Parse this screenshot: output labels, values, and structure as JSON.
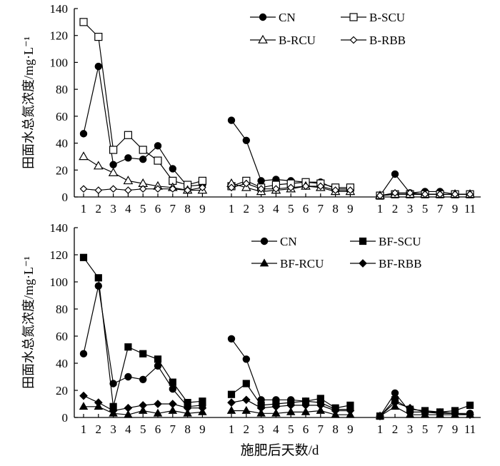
{
  "chart_data": [
    {
      "type": "line",
      "ylabel": "田面水总氮浓度/mg·L⁻¹",
      "xlabel": "",
      "ylim": [
        0,
        140
      ],
      "yticks": [
        0,
        20,
        40,
        60,
        80,
        100,
        120,
        140
      ],
      "grid": false,
      "legend_position": "top-right",
      "periods": [
        {
          "days": [
            "1",
            "2",
            "3",
            "4",
            "5",
            "6",
            "7",
            "8",
            "9"
          ]
        },
        {
          "days": [
            "1",
            "2",
            "3",
            "4",
            "5",
            "6",
            "7",
            "8",
            "9"
          ]
        },
        {
          "days": [
            "1",
            "2",
            "3",
            "5",
            "7",
            "9",
            "11"
          ]
        }
      ],
      "series": [
        {
          "name": "CN",
          "marker": "circle-filled",
          "values": [
            [
              47,
              97,
              24,
              29,
              28,
              38,
              21,
              8,
              9
            ],
            [
              57,
              42,
              12,
              13,
              12,
              11,
              11,
              6,
              6
            ],
            [
              1,
              17,
              3,
              4,
              4,
              2,
              2
            ]
          ]
        },
        {
          "name": "B-SCU",
          "marker": "square-open",
          "values": [
            [
              130,
              119,
              35,
              46,
              35,
              27,
              12,
              9,
              12
            ],
            [
              8,
              12,
              7,
              9,
              10,
              11,
              10,
              7,
              7
            ],
            [
              1,
              2,
              2,
              2,
              2,
              2,
              2
            ]
          ]
        },
        {
          "name": "B-RCU",
          "marker": "triangle-open",
          "values": [
            [
              30,
              23,
              18,
              12,
              10,
              8,
              7,
              5,
              5
            ],
            [
              10,
              7,
              4,
              5,
              6,
              8,
              7,
              4,
              4
            ],
            [
              1,
              2,
              2,
              2,
              2,
              2,
              2
            ]
          ]
        },
        {
          "name": "B-RBB",
          "marker": "diamond-open",
          "values": [
            [
              6,
              5,
              6,
              5,
              6,
              6,
              6,
              5,
              7
            ],
            [
              7,
              10,
              6,
              6,
              7,
              8,
              8,
              5,
              5
            ],
            [
              1,
              3,
              3,
              2,
              2,
              2,
              2
            ]
          ]
        }
      ]
    },
    {
      "type": "line",
      "ylabel": "田面水总氮浓度/mg·L⁻¹",
      "xlabel": "施肥后天数/d",
      "ylim": [
        0,
        140
      ],
      "yticks": [
        0,
        20,
        40,
        60,
        80,
        100,
        120,
        140
      ],
      "grid": false,
      "legend_position": "top-right",
      "periods": [
        {
          "days": [
            "1",
            "2",
            "3",
            "4",
            "5",
            "6",
            "7",
            "8",
            "9"
          ]
        },
        {
          "days": [
            "1",
            "2",
            "3",
            "4",
            "5",
            "6",
            "7",
            "8",
            "9"
          ]
        },
        {
          "days": [
            "1",
            "2",
            "3",
            "5",
            "7",
            "9",
            "11"
          ]
        }
      ],
      "series": [
        {
          "name": "CN",
          "marker": "circle-filled",
          "values": [
            [
              47,
              97,
              25,
              30,
              28,
              38,
              21,
              8,
              9
            ],
            [
              58,
              43,
              13,
              13,
              13,
              12,
              11,
              6,
              6
            ],
            [
              1,
              18,
              4,
              4,
              4,
              3,
              3
            ]
          ]
        },
        {
          "name": "BF-SCU",
          "marker": "square-filled",
          "values": [
            [
              118,
              103,
              8,
              52,
              47,
              43,
              26,
              11,
              12
            ],
            [
              17,
              25,
              9,
              10,
              11,
              12,
              14,
              7,
              9
            ],
            [
              1,
              13,
              6,
              5,
              4,
              5,
              9
            ]
          ]
        },
        {
          "name": "BF-RCU",
          "marker": "triangle-filled",
          "values": [
            [
              8,
              8,
              3,
              2,
              5,
              3,
              5,
              3,
              4
            ],
            [
              5,
              5,
              3,
              3,
              4,
              4,
              5,
              2,
              2
            ],
            [
              1,
              8,
              2,
              2,
              2,
              2,
              2
            ]
          ]
        },
        {
          "name": "BF-RBB",
          "marker": "diamond-filled",
          "values": [
            [
              16,
              11,
              5,
              7,
              9,
              10,
              10,
              7,
              7
            ],
            [
              11,
              13,
              7,
              8,
              9,
              9,
              9,
              5,
              5
            ],
            [
              1,
              11,
              7,
              4,
              3,
              3,
              2
            ]
          ]
        }
      ]
    }
  ]
}
